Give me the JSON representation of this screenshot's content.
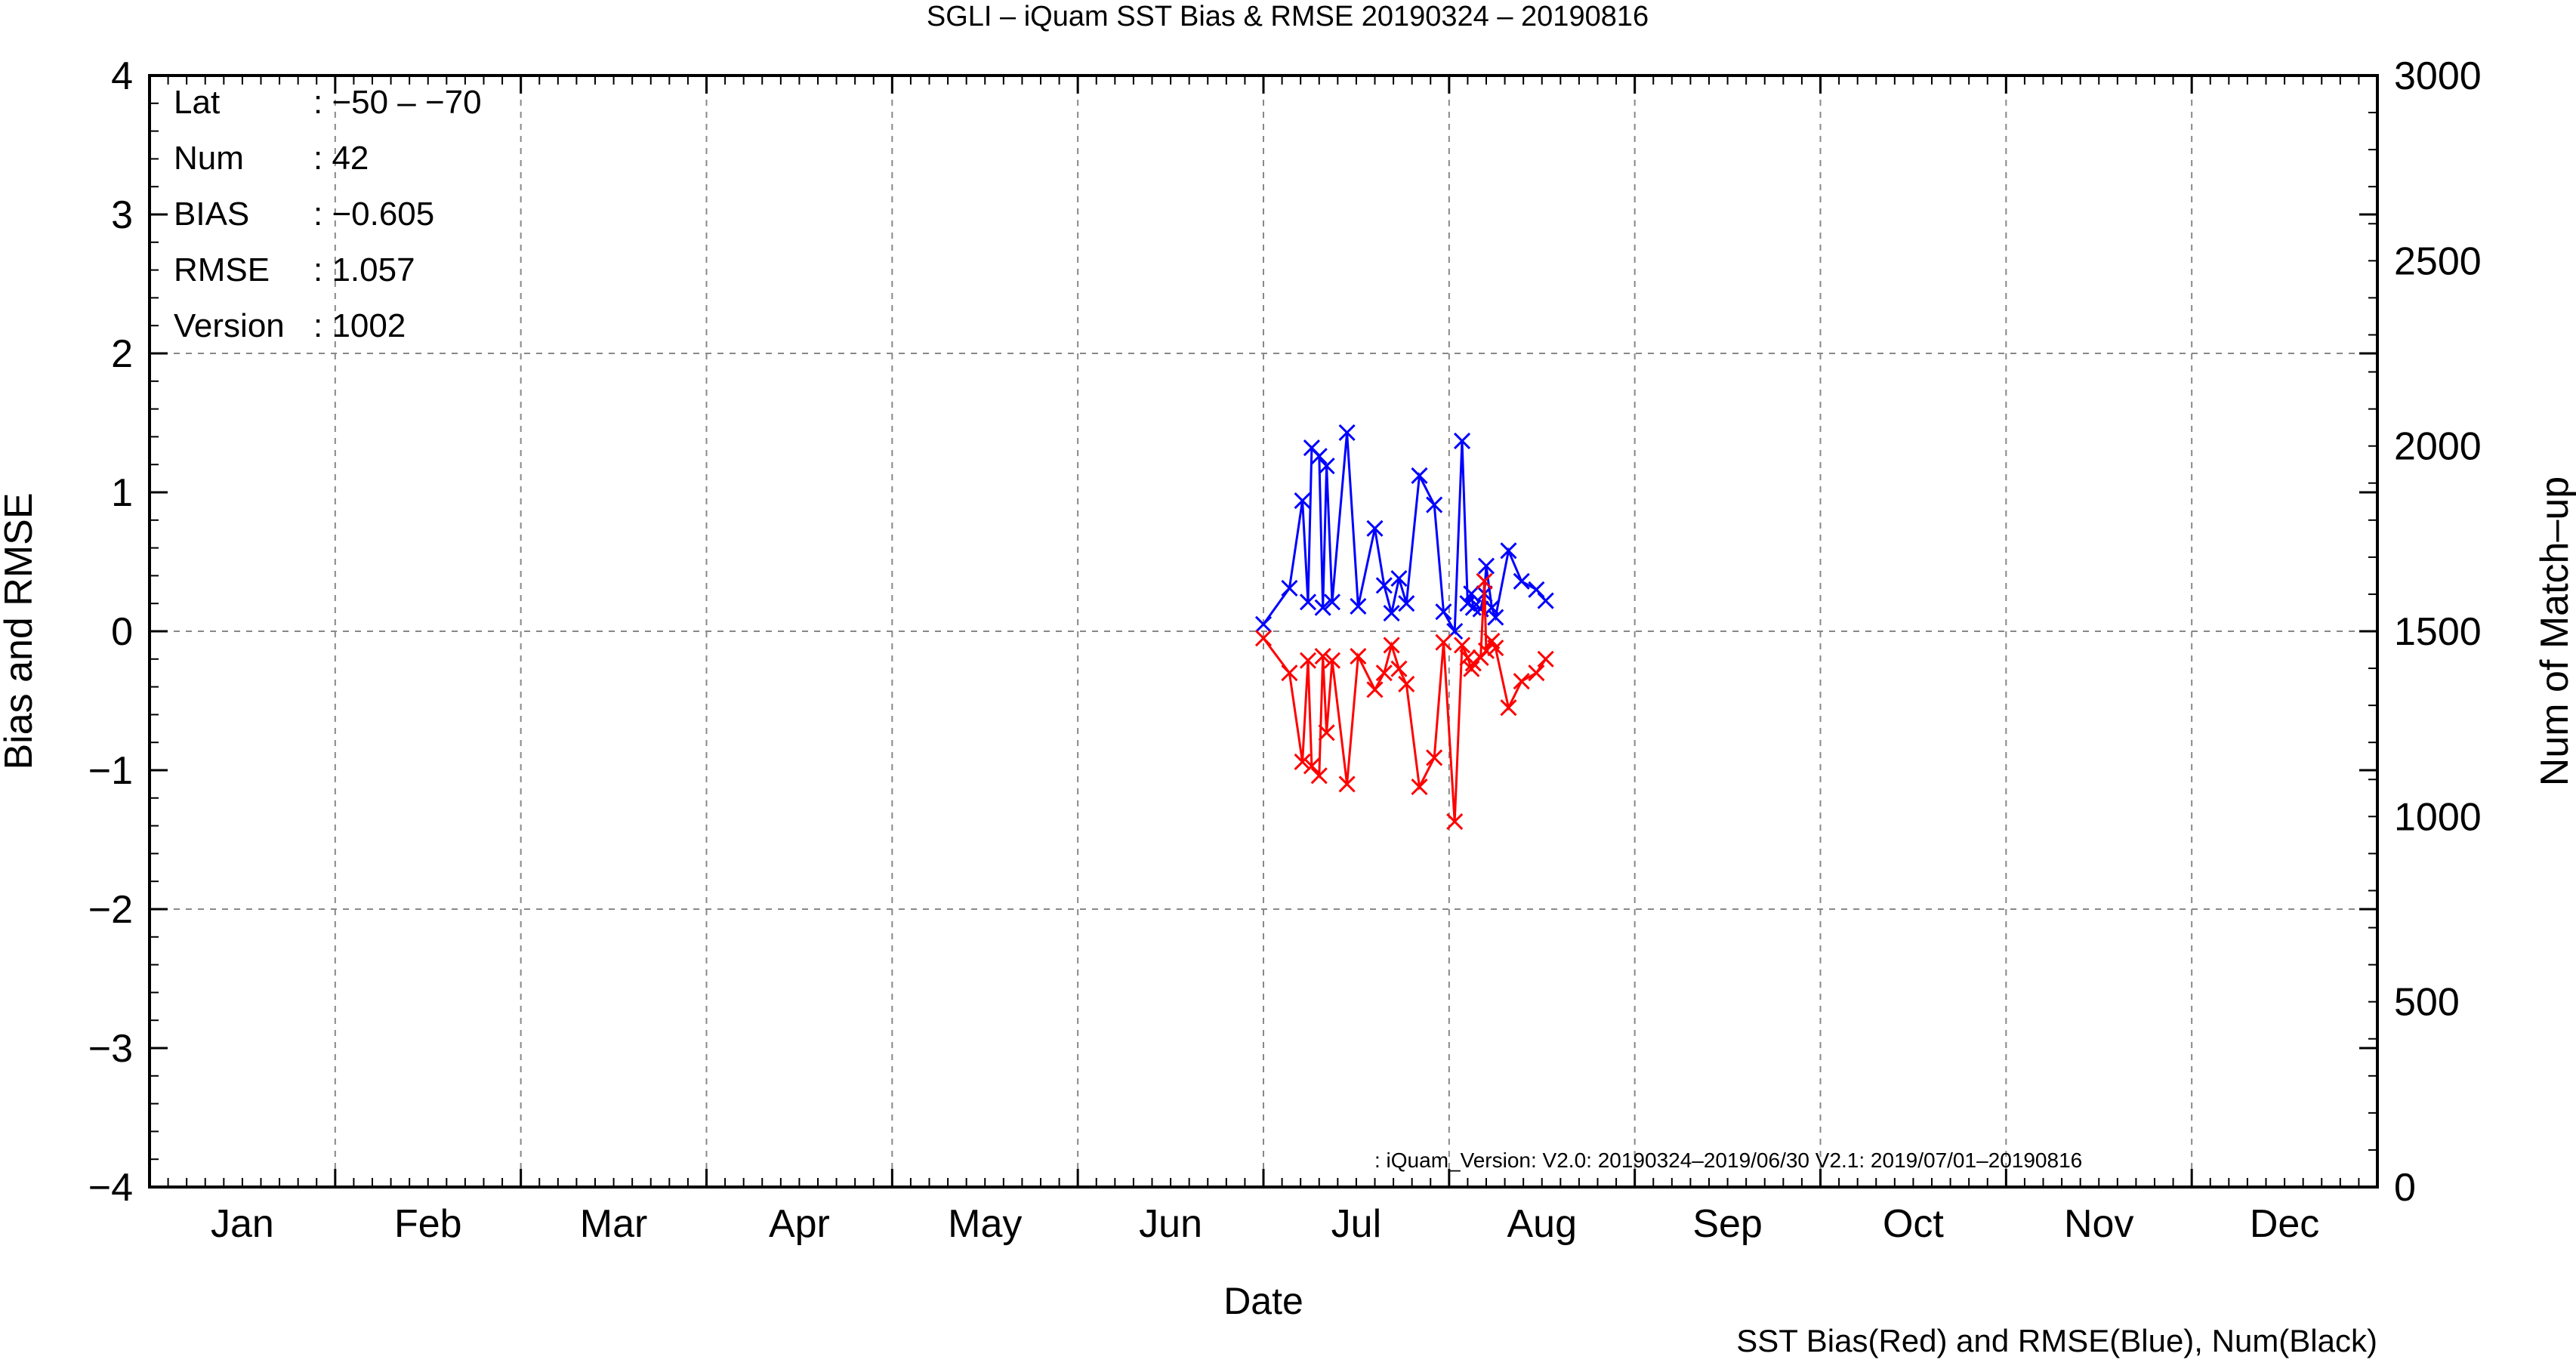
{
  "chart_data": {
    "type": "line",
    "title": "SGLI – iQuam  SST Bias & RMSE 20190324 – 20190816",
    "xlabel": "Date",
    "ylabel": "Bias and RMSE",
    "y2label": "Num of Match–up",
    "months": [
      "Jan",
      "Feb",
      "Mar",
      "Apr",
      "May",
      "Jun",
      "Jul",
      "Aug",
      "Sep",
      "Oct",
      "Nov",
      "Dec"
    ],
    "ylim": [
      -4,
      4
    ],
    "y2lim": [
      0,
      3000
    ],
    "yticks": [
      "4",
      "3",
      "2",
      "1",
      "0",
      "−1",
      "−2",
      "−3",
      "−4"
    ],
    "y2ticks": [
      "3000",
      "2500",
      "2000",
      "1500",
      "1000",
      "500",
      "0"
    ],
    "grid": true,
    "stats": [
      {
        "label": "Lat",
        "value": ": −50 – −70"
      },
      {
        "label": "Num",
        "value": ": 42"
      },
      {
        "label": "BIAS",
        "value": ": −0.605"
      },
      {
        "label": "RMSE",
        "value": ": 1.057"
      },
      {
        "label": "Version",
        "value": ": 1002"
      }
    ],
    "version_note": ": iQuam_Version: V2.0: 20190324–2019/06/30 V2.1: 2019/07/01–20190816",
    "legend_note": "SST Bias(Red) and RMSE(Blue), Num(Black)",
    "series": [
      {
        "color": "#0000ff",
        "x": [
          1.0,
          1.14,
          1.21,
          1.24,
          1.26,
          1.3,
          1.32,
          1.34,
          1.37,
          1.45,
          1.51,
          1.6,
          1.65,
          1.69,
          1.73,
          1.77,
          1.84,
          1.92,
          1.97,
          2.03,
          2.07,
          2.1,
          2.12,
          2.13,
          2.17,
          2.19,
          2.2,
          2.23,
          2.25,
          2.32,
          2.39,
          2.47,
          2.52
        ],
        "y": [
          0.05,
          0.31,
          0.94,
          0.21,
          1.32,
          1.26,
          0.17,
          1.19,
          0.21,
          1.43,
          0.18,
          0.74,
          0.33,
          0.13,
          0.38,
          0.2,
          1.12,
          0.91,
          0.14,
          0.0,
          1.37,
          0.2,
          0.27,
          0.17,
          0.16,
          0.27,
          0.47,
          0.17,
          0.1,
          0.58,
          0.36,
          0.3,
          0.22
        ]
      },
      {
        "color": "#ff0000",
        "x": [
          1.0,
          1.14,
          1.21,
          1.24,
          1.26,
          1.3,
          1.32,
          1.34,
          1.37,
          1.45,
          1.51,
          1.6,
          1.65,
          1.69,
          1.73,
          1.77,
          1.84,
          1.92,
          1.97,
          2.03,
          2.07,
          2.1,
          2.12,
          2.13,
          2.17,
          2.19,
          2.2,
          2.23,
          2.25,
          2.32,
          2.39,
          2.47,
          2.52
        ],
        "y": [
          -0.05,
          -0.3,
          -0.94,
          -0.21,
          -0.97,
          -1.04,
          -0.18,
          -0.73,
          -0.21,
          -1.1,
          -0.18,
          -0.42,
          -0.3,
          -0.1,
          -0.27,
          -0.38,
          -1.12,
          -0.91,
          -0.08,
          -1.37,
          -0.1,
          -0.19,
          -0.27,
          -0.23,
          -0.19,
          0.36,
          -0.14,
          -0.07,
          -0.12,
          -0.55,
          -0.36,
          -0.3,
          -0.2
        ]
      }
    ]
  }
}
